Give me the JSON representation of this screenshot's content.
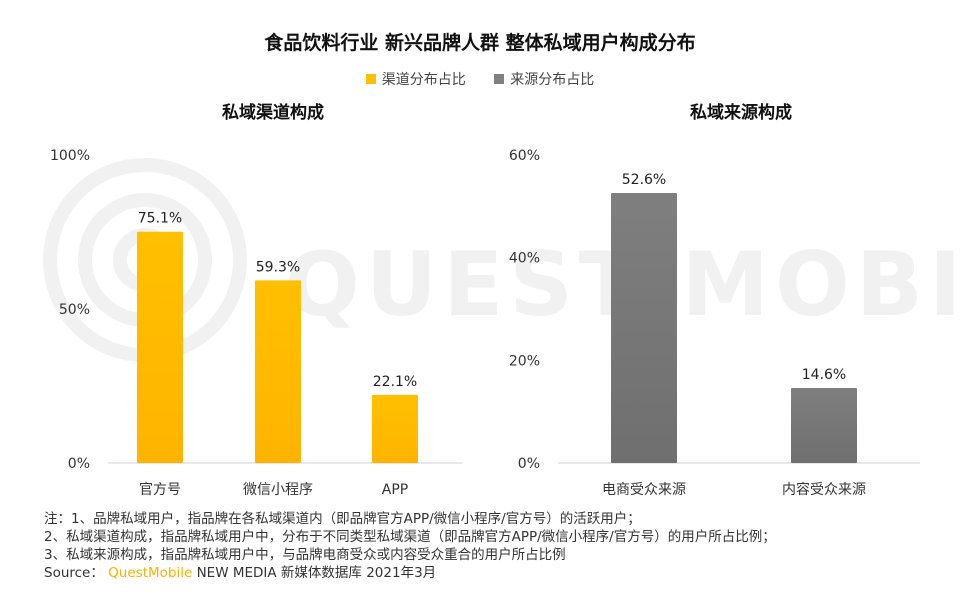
{
  "title": "食品饮料行业 新兴品牌人群 整体私域用户构成分布",
  "legend": [
    {
      "label": "渠道分布占比",
      "color": "#ffc000"
    },
    {
      "label": "来源分布占比",
      "color": "#7f7f7f"
    }
  ],
  "watermark": "QUEST MOBILE",
  "chart_data": [
    {
      "type": "bar",
      "title": "私域渠道构成",
      "series_name": "渠道分布占比",
      "categories": [
        "官方号",
        "微信小程序",
        "APP"
      ],
      "values": [
        75.1,
        59.3,
        22.1
      ],
      "value_labels": [
        "75.1%",
        "59.3%",
        "22.1%"
      ],
      "ylim": [
        0,
        100
      ],
      "yticks": [
        "0%",
        "50%",
        "100%"
      ],
      "color": "#ffc000"
    },
    {
      "type": "bar",
      "title": "私域来源构成",
      "series_name": "来源分布占比",
      "categories": [
        "电商受众来源",
        "内容受众来源"
      ],
      "values": [
        52.6,
        14.6
      ],
      "value_labels": [
        "52.6%",
        "14.6%"
      ],
      "ylim": [
        0,
        60
      ],
      "yticks": [
        "0%",
        "20%",
        "40%",
        "60%"
      ],
      "color": "#7f7f7f"
    }
  ],
  "notes": [
    "注：1、品牌私域用户，指品牌在各私域渠道内（即品牌官方APP/微信小程序/官方号）的活跃用户；",
    "2、私域渠道构成，指品牌私域用户中，分布于不同类型私域渠道（即品牌官方APP/微信小程序/官方号）的用户所占比例；",
    "3、私域来源构成，指品牌私域用户中，与品牌电商受众或内容受众重合的用户所占比例"
  ],
  "source": {
    "prefix": "Source：",
    "brand": "QuestMobile",
    "rest": " NEW MEDIA 新媒体数据库 2021年3月"
  }
}
